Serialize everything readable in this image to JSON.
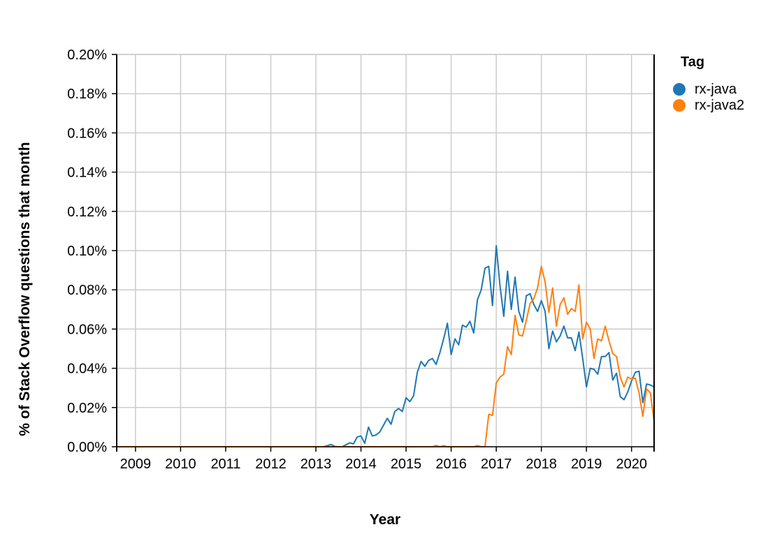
{
  "chart_data": {
    "type": "line",
    "xlabel": "Year",
    "ylabel": "% of Stack Overflow questions that month",
    "x_ticks": [
      "2009",
      "2010",
      "2011",
      "2012",
      "2013",
      "2014",
      "2015",
      "2016",
      "2017",
      "2018",
      "2019",
      "2020"
    ],
    "y_ticks": [
      "0.00%",
      "0.02%",
      "0.04%",
      "0.06%",
      "0.08%",
      "0.10%",
      "0.12%",
      "0.14%",
      "0.16%",
      "0.18%",
      "0.20%"
    ],
    "xlim": [
      "2008-08",
      "2020-07"
    ],
    "ylim": [
      0,
      0.2
    ],
    "y_unit": "%",
    "grid": true,
    "legend": {
      "title": "Tag",
      "placement": "top-right",
      "items": [
        {
          "name": "rx-java",
          "color": "#1f77b4"
        },
        {
          "name": "rx-java2",
          "color": "#ff7f0e"
        }
      ]
    },
    "series": [
      {
        "name": "rx-java",
        "color": "#1f77b4",
        "points": [
          [
            "2008-08",
            0
          ],
          [
            "2009-01",
            0
          ],
          [
            "2010-01",
            0
          ],
          [
            "2011-01",
            0
          ],
          [
            "2012-01",
            0
          ],
          [
            "2013-01",
            0
          ],
          [
            "2013-03",
            0
          ],
          [
            "2013-04",
            0.0005
          ],
          [
            "2013-05",
            0.0012
          ],
          [
            "2013-06",
            0.0002
          ],
          [
            "2013-07",
            0
          ],
          [
            "2013-08",
            0
          ],
          [
            "2013-09",
            0.001
          ],
          [
            "2013-10",
            0.002
          ],
          [
            "2013-11",
            0.0015
          ],
          [
            "2013-12",
            0.005
          ],
          [
            "2014-01",
            0.0055
          ],
          [
            "2014-02",
            0.0018
          ],
          [
            "2014-03",
            0.01
          ],
          [
            "2014-04",
            0.0055
          ],
          [
            "2014-05",
            0.006
          ],
          [
            "2014-06",
            0.0075
          ],
          [
            "2014-07",
            0.011
          ],
          [
            "2014-08",
            0.0145
          ],
          [
            "2014-09",
            0.0115
          ],
          [
            "2014-10",
            0.018
          ],
          [
            "2014-11",
            0.0195
          ],
          [
            "2014-12",
            0.018
          ],
          [
            "2015-01",
            0.025
          ],
          [
            "2015-02",
            0.023
          ],
          [
            "2015-03",
            0.026
          ],
          [
            "2015-04",
            0.038
          ],
          [
            "2015-05",
            0.0435
          ],
          [
            "2015-06",
            0.041
          ],
          [
            "2015-07",
            0.044
          ],
          [
            "2015-08",
            0.045
          ],
          [
            "2015-09",
            0.042
          ],
          [
            "2015-10",
            0.048
          ],
          [
            "2015-11",
            0.055
          ],
          [
            "2015-12",
            0.063
          ],
          [
            "2016-01",
            0.047
          ],
          [
            "2016-02",
            0.055
          ],
          [
            "2016-03",
            0.052
          ],
          [
            "2016-04",
            0.062
          ],
          [
            "2016-05",
            0.061
          ],
          [
            "2016-06",
            0.064
          ],
          [
            "2016-07",
            0.058
          ],
          [
            "2016-08",
            0.075
          ],
          [
            "2016-09",
            0.08
          ],
          [
            "2016-10",
            0.091
          ],
          [
            "2016-11",
            0.092
          ],
          [
            "2016-12",
            0.072
          ],
          [
            "2017-01",
            0.1025
          ],
          [
            "2017-02",
            0.082
          ],
          [
            "2017-03",
            0.0665
          ],
          [
            "2017-04",
            0.0895
          ],
          [
            "2017-05",
            0.07
          ],
          [
            "2017-06",
            0.0865
          ],
          [
            "2017-07",
            0.069
          ],
          [
            "2017-08",
            0.0635
          ],
          [
            "2017-09",
            0.077
          ],
          [
            "2017-10",
            0.078
          ],
          [
            "2017-11",
            0.0725
          ],
          [
            "2017-12",
            0.069
          ],
          [
            "2018-01",
            0.0745
          ],
          [
            "2018-02",
            0.069
          ],
          [
            "2018-03",
            0.05
          ],
          [
            "2018-04",
            0.059
          ],
          [
            "2018-05",
            0.0535
          ],
          [
            "2018-06",
            0.0565
          ],
          [
            "2018-07",
            0.0615
          ],
          [
            "2018-08",
            0.0555
          ],
          [
            "2018-09",
            0.0555
          ],
          [
            "2018-10",
            0.049
          ],
          [
            "2018-11",
            0.0585
          ],
          [
            "2018-12",
            0.045
          ],
          [
            "2019-01",
            0.0305
          ],
          [
            "2019-02",
            0.04
          ],
          [
            "2019-03",
            0.0395
          ],
          [
            "2019-04",
            0.037
          ],
          [
            "2019-05",
            0.046
          ],
          [
            "2019-06",
            0.046
          ],
          [
            "2019-07",
            0.048
          ],
          [
            "2019-08",
            0.034
          ],
          [
            "2019-09",
            0.0375
          ],
          [
            "2019-10",
            0.0255
          ],
          [
            "2019-11",
            0.024
          ],
          [
            "2019-12",
            0.028
          ],
          [
            "2020-01",
            0.0335
          ],
          [
            "2020-02",
            0.038
          ],
          [
            "2020-03",
            0.0385
          ],
          [
            "2020-04",
            0.0225
          ],
          [
            "2020-05",
            0.032
          ],
          [
            "2020-06",
            0.0315
          ],
          [
            "2020-07",
            0.0305
          ]
        ]
      },
      {
        "name": "rx-java2",
        "color": "#ff7f0e",
        "points": [
          [
            "2008-08",
            0
          ],
          [
            "2009-01",
            0
          ],
          [
            "2010-01",
            0
          ],
          [
            "2011-01",
            0
          ],
          [
            "2012-01",
            0
          ],
          [
            "2013-01",
            0
          ],
          [
            "2014-01",
            0
          ],
          [
            "2015-01",
            0
          ],
          [
            "2015-08",
            0
          ],
          [
            "2015-09",
            0.0007
          ],
          [
            "2015-10",
            0
          ],
          [
            "2015-11",
            0.0006
          ],
          [
            "2015-12",
            0
          ],
          [
            "2016-01",
            0
          ],
          [
            "2016-06",
            0
          ],
          [
            "2016-07",
            0
          ],
          [
            "2016-08",
            0.0006
          ],
          [
            "2016-09",
            0
          ],
          [
            "2016-10",
            0
          ],
          [
            "2016-11",
            0.0165
          ],
          [
            "2016-12",
            0.016
          ],
          [
            "2017-01",
            0.0325
          ],
          [
            "2017-02",
            0.0355
          ],
          [
            "2017-03",
            0.037
          ],
          [
            "2017-04",
            0.051
          ],
          [
            "2017-05",
            0.047
          ],
          [
            "2017-06",
            0.067
          ],
          [
            "2017-07",
            0.057
          ],
          [
            "2017-08",
            0.0565
          ],
          [
            "2017-09",
            0.0645
          ],
          [
            "2017-10",
            0.073
          ],
          [
            "2017-11",
            0.0755
          ],
          [
            "2017-12",
            0.081
          ],
          [
            "2018-01",
            0.092
          ],
          [
            "2018-02",
            0.084
          ],
          [
            "2018-03",
            0.0685
          ],
          [
            "2018-04",
            0.081
          ],
          [
            "2018-05",
            0.0615
          ],
          [
            "2018-06",
            0.0725
          ],
          [
            "2018-07",
            0.076
          ],
          [
            "2018-08",
            0.0675
          ],
          [
            "2018-09",
            0.0705
          ],
          [
            "2018-10",
            0.069
          ],
          [
            "2018-11",
            0.0825
          ],
          [
            "2018-12",
            0.055
          ],
          [
            "2019-01",
            0.0635
          ],
          [
            "2019-02",
            0.06
          ],
          [
            "2019-03",
            0.045
          ],
          [
            "2019-04",
            0.055
          ],
          [
            "2019-05",
            0.054
          ],
          [
            "2019-06",
            0.0615
          ],
          [
            "2019-07",
            0.054
          ],
          [
            "2019-08",
            0.0475
          ],
          [
            "2019-09",
            0.046
          ],
          [
            "2019-10",
            0.0355
          ],
          [
            "2019-11",
            0.0305
          ],
          [
            "2019-12",
            0.0355
          ],
          [
            "2020-01",
            0.0345
          ],
          [
            "2020-02",
            0.035
          ],
          [
            "2020-03",
            0.0275
          ],
          [
            "2020-04",
            0.0155
          ],
          [
            "2020-05",
            0.0295
          ],
          [
            "2020-06",
            0.0275
          ],
          [
            "2020-07",
            0.013
          ]
        ]
      }
    ]
  }
}
